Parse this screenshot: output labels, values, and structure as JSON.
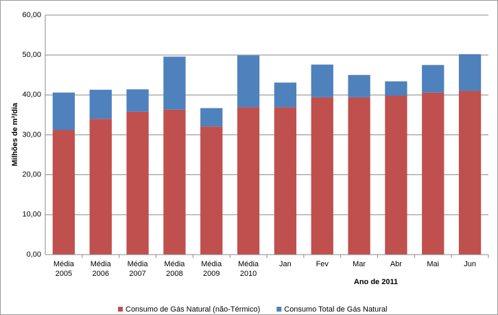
{
  "chart_data": {
    "type": "stacked_bar",
    "y_label": "Milhões de m³/dia",
    "annotation": "Ano de 2011",
    "categories": [
      [
        "Média",
        "2005"
      ],
      [
        "Média",
        "2006"
      ],
      [
        "Média",
        "2007"
      ],
      [
        "Média",
        "2008"
      ],
      [
        "Média",
        "2009"
      ],
      [
        "Média",
        "2010"
      ],
      [
        "Jan"
      ],
      [
        "Fev"
      ],
      [
        "Mar"
      ],
      [
        "Abr"
      ],
      [
        "Mai"
      ],
      [
        "Jun"
      ]
    ],
    "series": [
      {
        "name": "Consumo de Gás Natural (não-Térmico)",
        "color": "#c0504d",
        "values": [
          31.2,
          34.0,
          35.8,
          36.3,
          32.1,
          36.9,
          36.9,
          39.4,
          39.4,
          39.8,
          40.6,
          41.0
        ]
      },
      {
        "name": "Consumo Total de Gás Natural",
        "color": "#4f81bd",
        "values": [
          9.4,
          7.3,
          5.6,
          13.3,
          4.6,
          13.0,
          6.2,
          8.2,
          5.6,
          3.6,
          6.9,
          9.2
        ]
      }
    ],
    "ylim": [
      0,
      60
    ],
    "yticks": [
      {
        "value": 0,
        "label": "0,00"
      },
      {
        "value": 10,
        "label": "10,00"
      },
      {
        "value": 20,
        "label": "20,00"
      },
      {
        "value": 30,
        "label": "30,00"
      },
      {
        "value": 40,
        "label": "40,00"
      },
      {
        "value": 50,
        "label": "50,00"
      },
      {
        "value": 60,
        "label": "60,00"
      }
    ],
    "grid": true
  }
}
